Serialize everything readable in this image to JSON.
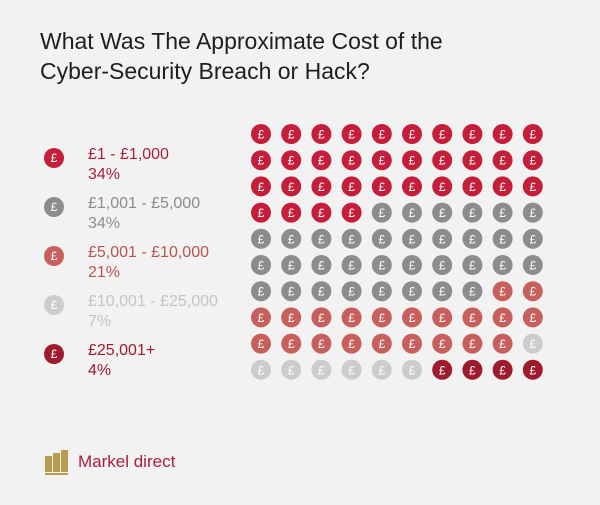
{
  "title": {
    "line1": "What Was The Approximate Cost of the",
    "line2": "Cyber-Security Breach or Hack?"
  },
  "icon_glyph": "£",
  "chart_data": {
    "type": "waffle",
    "title": "What Was The Approximate Cost of the Cyber-Security Breach or Hack?",
    "grid": {
      "rows": 10,
      "cols": 10
    },
    "series": [
      {
        "name": "£1 - £1,000",
        "label": "34%",
        "value": 34,
        "color": "#c41e3a"
      },
      {
        "name": "£1,001 - £5,000",
        "label": "34%",
        "value": 34,
        "color": "#8c8c8c"
      },
      {
        "name": "£5,001 - £10,000",
        "label": "21%",
        "value": 21,
        "color": "#c7605c"
      },
      {
        "name": "£10,001 - £25,000",
        "label": "7%",
        "value": 7,
        "color": "#cccccc"
      },
      {
        "name": "£25,001+",
        "label": "4%",
        "value": 4,
        "color": "#9e1b2e"
      }
    ]
  },
  "footer": {
    "logo_text": "MARKEL",
    "brand": "Markel direct",
    "logo_color": "#b89a52"
  }
}
